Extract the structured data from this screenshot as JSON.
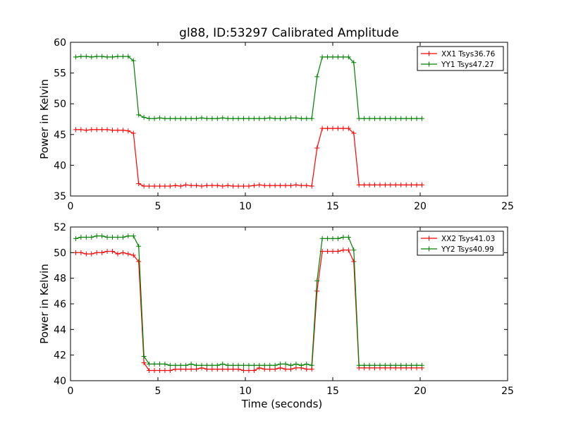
{
  "title": "gl88, ID:53297 Calibrated Amplitude",
  "chart_data": [
    {
      "type": "line",
      "title": "gl88, ID:53297 Calibrated Amplitude",
      "xlabel": "",
      "ylabel": "Power in Kelvin",
      "xlim": [
        0,
        25
      ],
      "ylim": [
        35,
        60
      ],
      "xticks": [
        0,
        5,
        10,
        15,
        20,
        25
      ],
      "yticks": [
        35,
        40,
        45,
        50,
        55,
        60
      ],
      "grid": false,
      "legend": "top-right",
      "x": [
        0.3,
        0.6,
        0.9,
        1.2,
        1.5,
        1.8,
        2.1,
        2.4,
        2.7,
        3.0,
        3.3,
        3.6,
        3.9,
        4.2,
        4.5,
        4.8,
        5.1,
        5.4,
        5.7,
        6.0,
        6.3,
        6.6,
        6.9,
        7.2,
        7.5,
        7.8,
        8.1,
        8.4,
        8.7,
        9.0,
        9.3,
        9.6,
        9.9,
        10.2,
        10.5,
        10.8,
        11.1,
        11.4,
        11.7,
        12.0,
        12.3,
        12.6,
        12.9,
        13.2,
        13.5,
        13.8,
        14.1,
        14.4,
        14.7,
        15.0,
        15.3,
        15.6,
        15.9,
        16.2,
        16.5,
        16.8,
        17.1,
        17.4,
        17.7,
        18.0,
        18.3,
        18.6,
        18.9,
        19.2,
        19.5,
        19.8,
        20.1
      ],
      "series": [
        {
          "name": "XX1 Tsys36.76",
          "color": "#ff0000",
          "values": [
            45.8,
            45.8,
            45.7,
            45.8,
            45.8,
            45.8,
            45.8,
            45.7,
            45.7,
            45.7,
            45.6,
            45.2,
            37.0,
            36.6,
            36.6,
            36.6,
            36.6,
            36.6,
            36.6,
            36.7,
            36.6,
            36.8,
            36.7,
            36.7,
            36.6,
            36.7,
            36.7,
            36.7,
            36.6,
            36.7,
            36.6,
            36.6,
            36.6,
            36.6,
            36.7,
            36.8,
            36.7,
            36.7,
            36.7,
            36.7,
            36.7,
            36.7,
            36.8,
            36.7,
            36.7,
            36.6,
            42.8,
            46.0,
            46.0,
            46.0,
            46.0,
            46.0,
            46.0,
            45.2,
            36.8,
            36.8,
            36.8,
            36.8,
            36.8,
            36.8,
            36.8,
            36.8,
            36.8,
            36.8,
            36.8,
            36.8,
            36.8
          ]
        },
        {
          "name": "YY1 Tsys47.27",
          "color": "#008000",
          "values": [
            57.6,
            57.7,
            57.7,
            57.6,
            57.7,
            57.7,
            57.6,
            57.6,
            57.7,
            57.7,
            57.7,
            57.0,
            48.2,
            47.8,
            47.6,
            47.6,
            47.7,
            47.6,
            47.6,
            47.6,
            47.6,
            47.6,
            47.6,
            47.6,
            47.7,
            47.6,
            47.6,
            47.6,
            47.7,
            47.6,
            47.6,
            47.6,
            47.6,
            47.6,
            47.6,
            47.6,
            47.6,
            47.7,
            47.6,
            47.6,
            47.6,
            47.7,
            47.7,
            47.6,
            47.6,
            47.6,
            54.4,
            57.6,
            57.6,
            57.6,
            57.6,
            57.6,
            57.6,
            56.7,
            47.6,
            47.6,
            47.6,
            47.6,
            47.6,
            47.6,
            47.6,
            47.6,
            47.6,
            47.6,
            47.6,
            47.6,
            47.6
          ]
        }
      ]
    },
    {
      "type": "line",
      "title": "",
      "xlabel": "Time (seconds)",
      "ylabel": "Power in Kelvin",
      "xlim": [
        0,
        25
      ],
      "ylim": [
        40,
        52
      ],
      "xticks": [
        0,
        5,
        10,
        15,
        20,
        25
      ],
      "yticks": [
        40,
        42,
        44,
        46,
        48,
        50,
        52
      ],
      "grid": false,
      "legend": "top-right",
      "x": [
        0.3,
        0.6,
        0.9,
        1.2,
        1.5,
        1.8,
        2.1,
        2.4,
        2.7,
        3.0,
        3.3,
        3.6,
        3.9,
        4.2,
        4.5,
        4.8,
        5.1,
        5.4,
        5.7,
        6.0,
        6.3,
        6.6,
        6.9,
        7.2,
        7.5,
        7.8,
        8.1,
        8.4,
        8.7,
        9.0,
        9.3,
        9.6,
        9.9,
        10.2,
        10.5,
        10.8,
        11.1,
        11.4,
        11.7,
        12.0,
        12.3,
        12.6,
        12.9,
        13.2,
        13.5,
        13.8,
        14.1,
        14.4,
        14.7,
        15.0,
        15.3,
        15.6,
        15.9,
        16.2,
        16.5,
        16.8,
        17.1,
        17.4,
        17.7,
        18.0,
        18.3,
        18.6,
        18.9,
        19.2,
        19.5,
        19.8,
        20.1
      ],
      "series": [
        {
          "name": "XX2 Tsys41.03",
          "color": "#ff0000",
          "values": [
            50.0,
            50.0,
            49.9,
            49.9,
            50.0,
            50.0,
            50.1,
            50.1,
            49.9,
            50.0,
            49.9,
            49.8,
            49.3,
            41.4,
            40.8,
            40.8,
            40.8,
            40.8,
            40.8,
            40.9,
            40.9,
            40.9,
            40.9,
            40.9,
            41.0,
            40.9,
            40.9,
            40.9,
            40.9,
            40.9,
            40.9,
            40.9,
            40.8,
            40.8,
            40.8,
            41.0,
            40.9,
            40.9,
            40.9,
            41.0,
            40.9,
            40.9,
            41.0,
            41.0,
            40.9,
            40.9,
            47.0,
            50.1,
            50.1,
            50.1,
            50.1,
            50.2,
            50.2,
            49.3,
            41.0,
            41.0,
            41.0,
            41.0,
            41.0,
            41.0,
            41.0,
            41.0,
            41.0,
            41.0,
            41.0,
            41.0,
            41.0
          ]
        },
        {
          "name": "YY2 Tsys40.99",
          "color": "#008000",
          "values": [
            51.1,
            51.2,
            51.2,
            51.2,
            51.3,
            51.3,
            51.2,
            51.2,
            51.2,
            51.2,
            51.3,
            51.3,
            50.5,
            41.9,
            41.3,
            41.3,
            41.3,
            41.3,
            41.2,
            41.2,
            41.2,
            41.2,
            41.3,
            41.2,
            41.2,
            41.2,
            41.2,
            41.2,
            41.3,
            41.2,
            41.2,
            41.2,
            41.2,
            41.2,
            41.2,
            41.2,
            41.2,
            41.2,
            41.2,
            41.3,
            41.3,
            41.2,
            41.3,
            41.2,
            41.3,
            41.2,
            47.8,
            51.1,
            51.1,
            51.1,
            51.1,
            51.2,
            51.2,
            50.2,
            41.2,
            41.2,
            41.2,
            41.2,
            41.2,
            41.2,
            41.2,
            41.2,
            41.2,
            41.2,
            41.2,
            41.2,
            41.2
          ]
        }
      ]
    }
  ]
}
